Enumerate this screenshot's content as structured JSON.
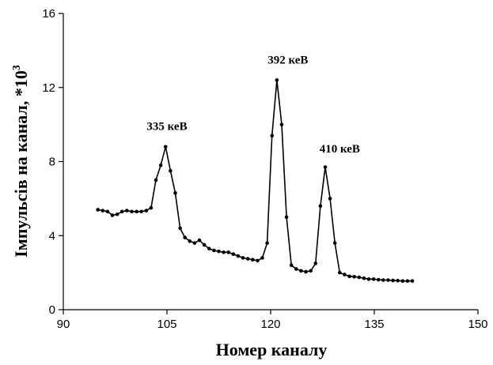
{
  "chart_data": {
    "type": "line",
    "xlabel": "Номер каналу",
    "ylabel": "Імпульсів на канал, *10",
    "ylabel_exponent": "3",
    "xlim": [
      90,
      150
    ],
    "ylim": [
      0,
      16
    ],
    "xticks": [
      90,
      105,
      120,
      135,
      150
    ],
    "yticks": [
      0,
      4,
      8,
      12,
      16
    ],
    "xtick_labels": [
      "90",
      "105",
      "120",
      "135",
      "150"
    ],
    "ytick_labels": [
      "0",
      "4",
      "8",
      "12",
      "16"
    ],
    "grid": false,
    "series": [
      {
        "x": [
          95,
          95.7,
          96.4,
          97.1,
          97.8,
          98.5,
          99.2,
          99.9,
          100.6,
          101.3,
          102,
          102.7,
          103.4,
          104.1,
          104.8,
          105.5,
          106.2,
          106.9,
          107.6,
          108.3,
          109,
          109.7,
          110.4,
          111.1,
          111.8,
          112.5,
          113.2,
          113.9,
          114.6,
          115.3,
          116,
          116.7,
          117.4,
          118.1,
          118.8,
          119.5,
          120.2,
          120.9,
          121.6,
          122.3,
          123,
          123.7,
          124.4,
          125.1,
          125.8,
          126.5,
          127.2,
          127.9,
          128.6,
          129.3,
          130,
          130.7,
          131.4,
          132.1,
          132.8,
          133.5,
          134.2,
          134.9,
          135.6,
          136.3,
          137,
          137.7,
          138.4,
          139.1,
          139.8,
          140.5
        ],
        "y": [
          5.4,
          5.35,
          5.3,
          5.1,
          5.15,
          5.3,
          5.35,
          5.3,
          5.3,
          5.3,
          5.35,
          5.5,
          7.0,
          7.8,
          8.8,
          7.5,
          6.3,
          4.4,
          3.9,
          3.7,
          3.6,
          3.75,
          3.5,
          3.3,
          3.2,
          3.15,
          3.1,
          3.1,
          3.0,
          2.9,
          2.8,
          2.75,
          2.7,
          2.65,
          2.8,
          3.6,
          9.4,
          12.4,
          10.0,
          5.0,
          2.4,
          2.2,
          2.1,
          2.05,
          2.1,
          2.5,
          5.6,
          7.7,
          6.0,
          3.6,
          2.0,
          1.9,
          1.8,
          1.78,
          1.75,
          1.7,
          1.65,
          1.65,
          1.62,
          1.6,
          1.6,
          1.58,
          1.57,
          1.55,
          1.55,
          1.55
        ]
      }
    ],
    "annotations": [
      {
        "text": "335 кеВ",
        "x": 105,
        "y": 9.7
      },
      {
        "text": "392 кеВ",
        "x": 122.5,
        "y": 13.3
      },
      {
        "text": "410 кеВ",
        "x": 130,
        "y": 8.5
      }
    ]
  }
}
